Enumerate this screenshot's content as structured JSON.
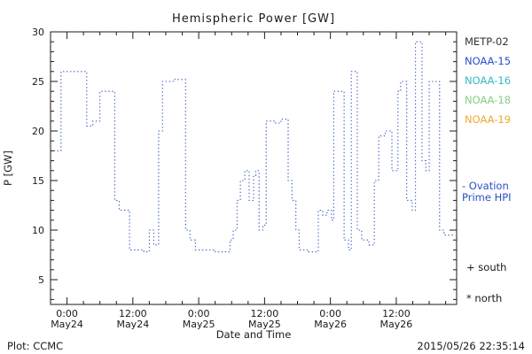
{
  "title": "Hemispheric Power [GW]",
  "y_axis": {
    "label": "P [GW]",
    "ticks": [
      5,
      10,
      15,
      20,
      25,
      30
    ],
    "minor_step": 1
  },
  "x_axis": {
    "label": "Date and Time",
    "minor_step_hours": 3,
    "major_ticks": [
      {
        "t": 0,
        "time": "0:00",
        "date": "May24"
      },
      {
        "t": 12,
        "time": "12:00",
        "date": "May24"
      },
      {
        "t": 24,
        "time": "0:00",
        "date": "May25"
      },
      {
        "t": 36,
        "time": "12:00",
        "date": "May25"
      },
      {
        "t": 48,
        "time": "0:00",
        "date": "May26"
      },
      {
        "t": 60,
        "time": "12:00",
        "date": "May26"
      }
    ]
  },
  "legend": {
    "satellites": [
      {
        "label": "METP-02",
        "color": "#333333"
      },
      {
        "label": "NOAA-15",
        "color": "#2b50c8"
      },
      {
        "label": "NOAA-16",
        "color": "#38b8c8"
      },
      {
        "label": "NOAA-18",
        "color": "#84d084"
      },
      {
        "label": "NOAA-19",
        "color": "#f0a830"
      }
    ],
    "ovation": {
      "line1": "- Ovation",
      "line2": "Prime HPI",
      "color": "#2b50c8"
    },
    "markers": [
      {
        "symbol": "+",
        "label": "south"
      },
      {
        "symbol": "*",
        "label": "north"
      }
    ]
  },
  "footer": {
    "left": "Plot: CCMC",
    "right": "2015/05/26 22:35:14"
  },
  "chart_data": {
    "type": "line",
    "step": true,
    "line_style": "dotted",
    "line_color": "#3a5fc8",
    "title": "Hemispheric Power [GW]",
    "xlabel": "Date and Time",
    "ylabel": "P [GW]",
    "xlim_hours": [
      -3,
      71
    ],
    "ylim": [
      2.5,
      30
    ],
    "x_tick_labels": [
      "0:00 May24",
      "12:00 May24",
      "0:00 May25",
      "12:00 May25",
      "0:00 May26",
      "12:00 May26"
    ],
    "series": [
      {
        "name": "Ovation Prime HPI",
        "x_hours_from_may24_0000": [
          -2.4,
          -1.1,
          3.6,
          4.7,
          6.0,
          8.7,
          9.5,
          11.4,
          14.0,
          15.0,
          15.8,
          16.7,
          17.4,
          19.5,
          21.6,
          22.4,
          23.4,
          27.0,
          29.7,
          30.3,
          31.0,
          31.6,
          32.4,
          33.2,
          34.0,
          34.4,
          35.0,
          35.7,
          36.3,
          38.0,
          39.0,
          40.3,
          41.0,
          41.7,
          42.3,
          44.0,
          45.8,
          46.6,
          47.4,
          48.2,
          48.6,
          50.5,
          51.3,
          51.8,
          52.9,
          53.7,
          55.0,
          56.0,
          56.8,
          58.0,
          59.2,
          60.3,
          60.8,
          61.9,
          62.9,
          63.5,
          64.7,
          65.4,
          66.0,
          67.9,
          68.7,
          70.5
        ],
        "y_gw": [
          18,
          26,
          20.5,
          21,
          24,
          13,
          12,
          8,
          7.8,
          10,
          8.5,
          20,
          25,
          25.2,
          10,
          9,
          8,
          7.8,
          9,
          10,
          13,
          15,
          16,
          13,
          15.5,
          16,
          10,
          10.5,
          21,
          20.8,
          21.2,
          15,
          13,
          10,
          8,
          7.8,
          12,
          11.5,
          12,
          11,
          24,
          9,
          8,
          26,
          10,
          9,
          8.5,
          15,
          19.5,
          20,
          16,
          24,
          25,
          13,
          12,
          29,
          17,
          16,
          25,
          10,
          9.5,
          9.5
        ]
      }
    ]
  }
}
